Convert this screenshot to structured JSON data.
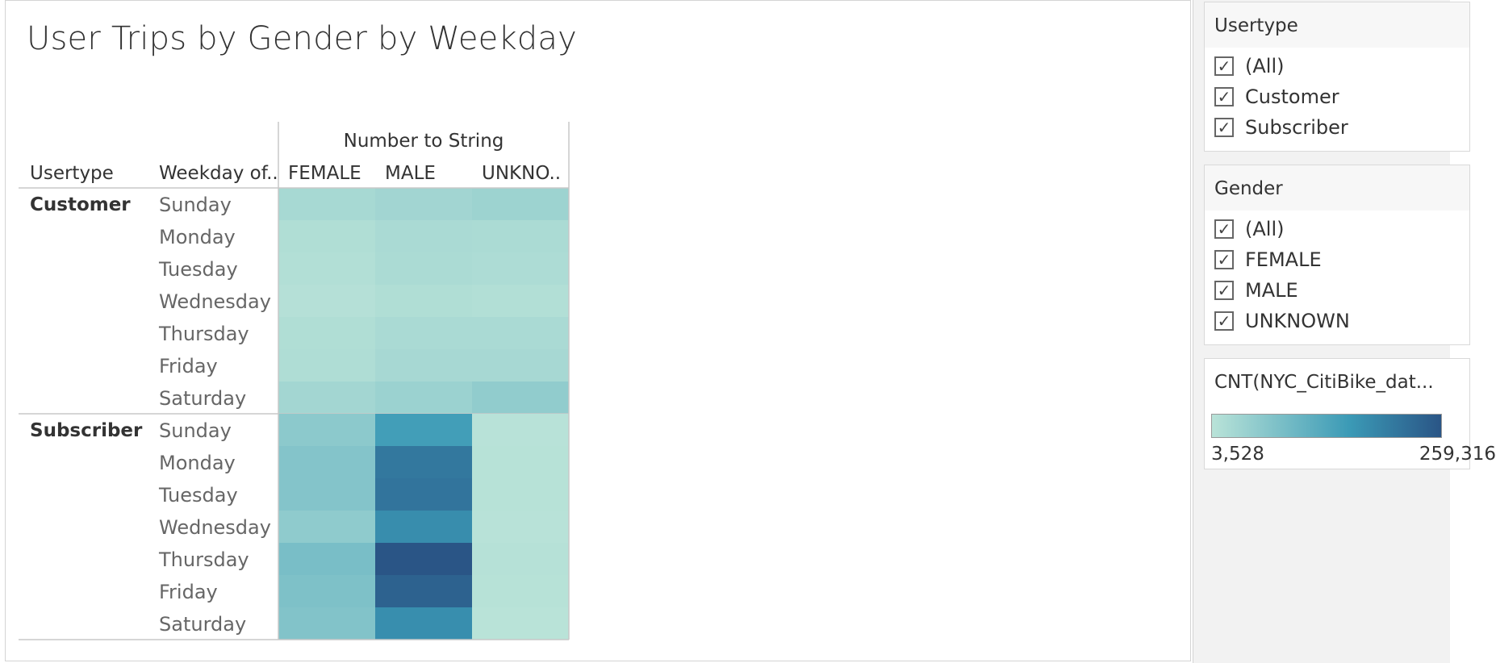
{
  "title": "User Trips by Gender by Weekday",
  "chart_data": {
    "type": "heatmap",
    "title": "User Trips by Gender by Weekday",
    "column_group_title": "Number to String",
    "row_header_1": "Usertype",
    "row_header_2": "Weekday of..",
    "columns": [
      "FEMALE",
      "MALE",
      "UNKNO.."
    ],
    "value_label": "CNT(NYC_CitiBike_dat...",
    "color_range": [
      3528,
      259316
    ],
    "colors": {
      "low": "#b9e3d8",
      "mid": "#3b9ab6",
      "high": "#2a5586"
    },
    "groups": [
      {
        "name": "Customer",
        "rows": [
          {
            "day": "Sunday",
            "values": [
              25000,
              32000,
              38000
            ]
          },
          {
            "day": "Monday",
            "values": [
              15000,
              22000,
              20000
            ]
          },
          {
            "day": "Tuesday",
            "values": [
              12000,
              20000,
              18000
            ]
          },
          {
            "day": "Wednesday",
            "values": [
              9000,
              15000,
              12000
            ]
          },
          {
            "day": "Thursday",
            "values": [
              15000,
              22000,
              22000
            ]
          },
          {
            "day": "Friday",
            "values": [
              16000,
              26000,
              26000
            ]
          },
          {
            "day": "Saturday",
            "values": [
              30000,
              40000,
              52000
            ]
          }
        ]
      },
      {
        "name": "Subscriber",
        "rows": [
          {
            "day": "Sunday",
            "values": [
              58000,
              148000,
              5000
            ]
          },
          {
            "day": "Monday",
            "values": [
              68000,
              208000,
              6000
            ]
          },
          {
            "day": "Tuesday",
            "values": [
              68000,
              213000,
              6000
            ]
          },
          {
            "day": "Wednesday",
            "values": [
              55000,
              176000,
              5000
            ]
          },
          {
            "day": "Thursday",
            "values": [
              82000,
              259316,
              7000
            ]
          },
          {
            "day": "Friday",
            "values": [
              75000,
              240000,
              6000
            ]
          },
          {
            "day": "Saturday",
            "values": [
              70000,
              175000,
              3528
            ]
          }
        ]
      }
    ]
  },
  "filters": {
    "usertype": {
      "title": "Usertype",
      "items": [
        "(All)",
        "Customer",
        "Subscriber"
      ]
    },
    "gender": {
      "title": "Gender",
      "items": [
        "(All)",
        "FEMALE",
        "MALE",
        "UNKNOWN"
      ]
    }
  },
  "legend": {
    "title": "CNT(NYC_CitiBike_dat...",
    "min_label": "3,528",
    "max_label": "259,316"
  },
  "check_glyph": "✓"
}
